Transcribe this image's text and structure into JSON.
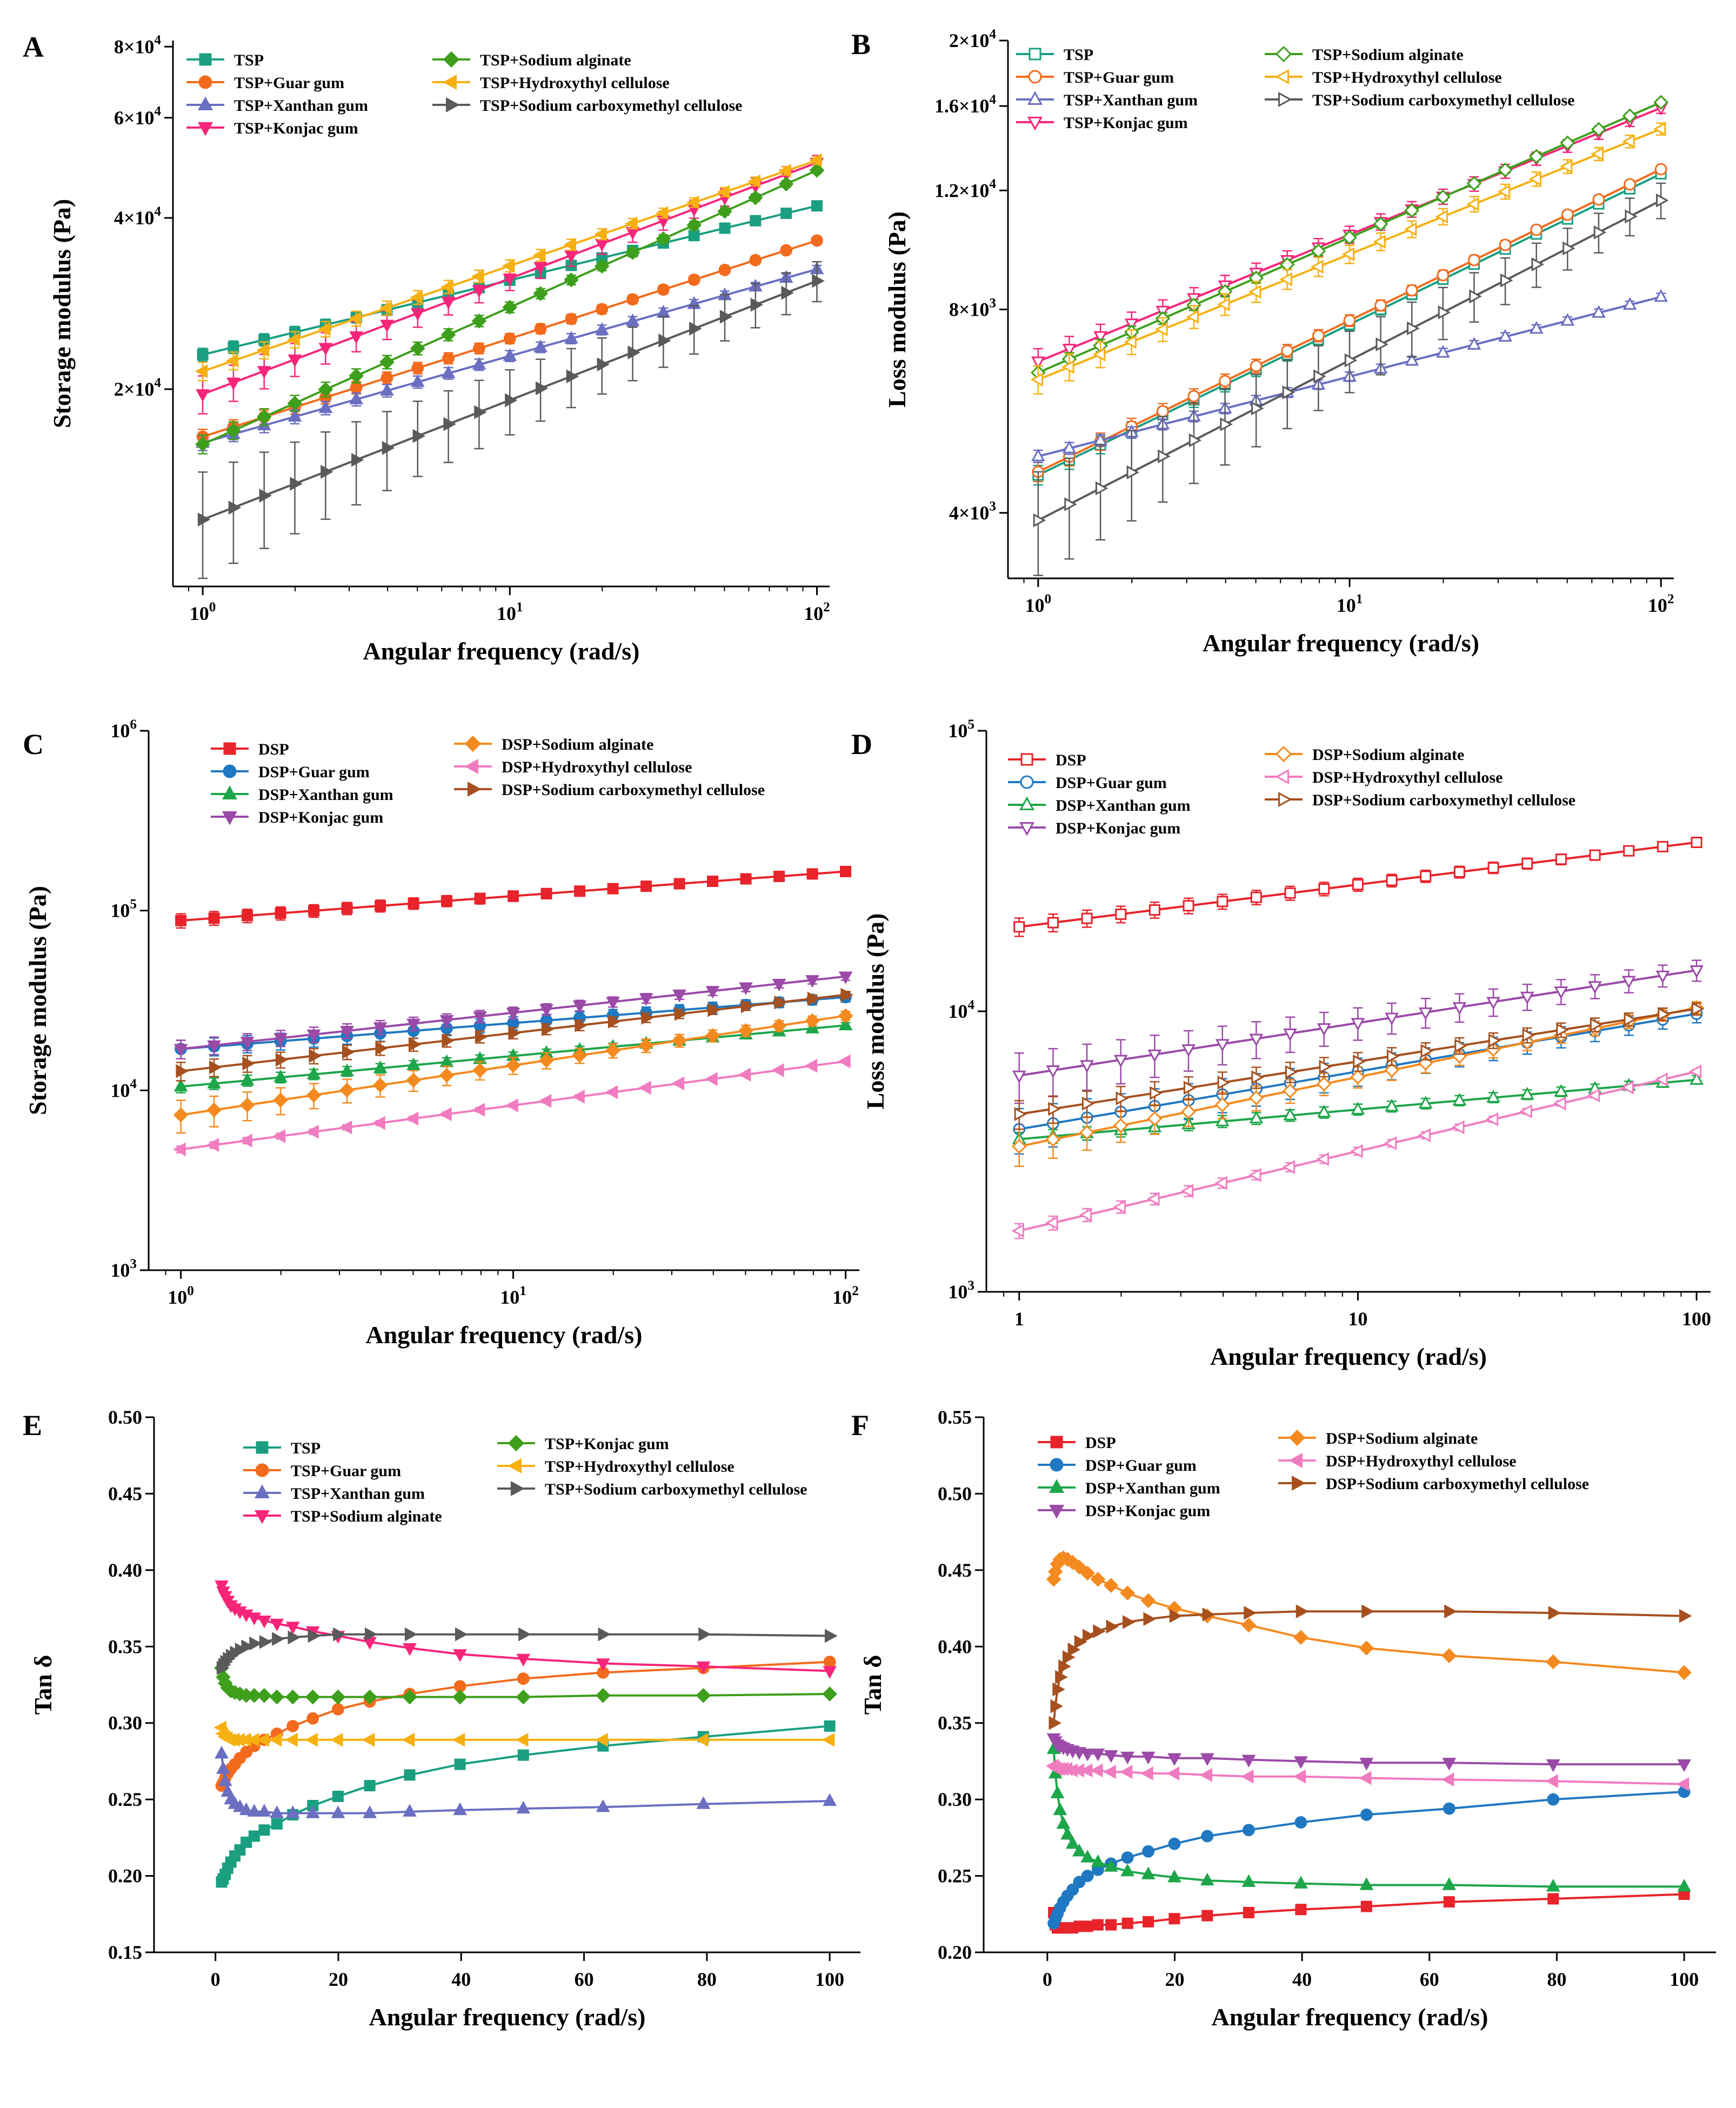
{
  "chart_data": [
    {
      "panel": "A",
      "type": "line",
      "xscale": "log",
      "yscale": "log",
      "xlabel": "Angular frequency (rad/s)",
      "ylabel": "Storage modulus (Pa)",
      "xlim": [
        0.8,
        110
      ],
      "ylim": [
        9000,
        82000
      ],
      "xticks": [
        {
          "v": 1,
          "b": "10",
          "e": "0"
        },
        {
          "v": 10,
          "b": "10",
          "e": "1"
        },
        {
          "v": 100,
          "b": "10",
          "e": "2"
        }
      ],
      "yticks": [
        {
          "v": 20000,
          "b": "2×10",
          "e": "4"
        },
        {
          "v": 40000,
          "b": "4×10",
          "e": "4"
        },
        {
          "v": 60000,
          "b": "6×10",
          "e": "4"
        },
        {
          "v": 80000,
          "b": "8×10",
          "e": "4"
        }
      ],
      "marker_fill": "solid",
      "series": [
        {
          "name": "TSP",
          "color": "#1a9f80",
          "marker": "square",
          "y0": 23000,
          "y1": 42000,
          "err": 600
        },
        {
          "name": "TSP+Guar gum",
          "color": "#f26b1d",
          "marker": "circle",
          "y0": 16500,
          "y1": 36500,
          "err": 500
        },
        {
          "name": "TSP+Xanthan gum",
          "color": "#6a6fc2",
          "marker": "tri-up",
          "y0": 16100,
          "y1": 32500,
          "err": 500
        },
        {
          "name": "TSP+Konjac gum",
          "color": "#f7257a",
          "marker": "tri-down",
          "y0": 19600,
          "y1": 50000,
          "err": 1500
        },
        {
          "name": "TSP+Sodium alginate",
          "color": "#3d9f1b",
          "marker": "diamond",
          "y0": 16000,
          "y1": 48500,
          "err": 600
        },
        {
          "name": "TSP+Hydroxythyl cellulose",
          "color": "#f6b012",
          "marker": "tri-left",
          "y0": 21500,
          "y1": 50500,
          "err": 800
        },
        {
          "name": "TSP+Sodium carboxymethyl cellulose",
          "color": "#5a5a5a",
          "marker": "tri-right",
          "y0": 11800,
          "y1": 31000,
          "err": 2500
        }
      ]
    },
    {
      "panel": "B",
      "type": "line",
      "xscale": "log",
      "yscale": "log",
      "xlabel": "Angular frequency (rad/s)",
      "ylabel": "Loss modulus (Pa)",
      "xlim": [
        0.8,
        110
      ],
      "ylim": [
        3200,
        20000
      ],
      "xticks": [
        {
          "v": 1,
          "b": "10",
          "e": "0"
        },
        {
          "v": 10,
          "b": "10",
          "e": "1"
        },
        {
          "v": 100,
          "b": "10",
          "e": "2"
        }
      ],
      "yticks": [
        {
          "v": 4000,
          "b": "4×10",
          "e": "3"
        },
        {
          "v": 8000,
          "b": "8×10",
          "e": "3"
        },
        {
          "v": 12000,
          "b": "1.2×10",
          "e": "4"
        },
        {
          "v": 16000,
          "b": "1.6×10",
          "e": "4"
        },
        {
          "v": 20000,
          "b": "2×10",
          "e": "4"
        }
      ],
      "marker_fill": "open",
      "series": [
        {
          "name": "TSP",
          "color": "#1a9f80",
          "marker": "square",
          "y0": 4550,
          "y1": 12700,
          "err": 150
        },
        {
          "name": "TSP+Guar gum",
          "color": "#f26b1d",
          "marker": "circle",
          "y0": 4600,
          "y1": 12900,
          "err": 150
        },
        {
          "name": "TSP+Xanthan gum",
          "color": "#6a6fc2",
          "marker": "tri-up",
          "y0": 4850,
          "y1": 8350,
          "err": 100
        },
        {
          "name": "TSP+Konjac gum",
          "color": "#f7257a",
          "marker": "tri-down",
          "y0": 6700,
          "y1": 15900,
          "err": 300
        },
        {
          "name": "TSP+Sodium alginate",
          "color": "#3d9f1b",
          "marker": "diamond",
          "y0": 6450,
          "y1": 16200,
          "err": 150
        },
        {
          "name": "TSP+Hydroxythyl cellulose",
          "color": "#f6b012",
          "marker": "tri-left",
          "y0": 6300,
          "y1": 14800,
          "err": 300
        },
        {
          "name": "TSP+Sodium carboxymethyl cellulose",
          "color": "#5a5a5a",
          "marker": "tri-right",
          "y0": 3900,
          "y1": 11600,
          "err": 700
        }
      ]
    },
    {
      "panel": "C",
      "type": "line",
      "xscale": "log",
      "yscale": "log",
      "xlabel": "Angular frequency (rad/s)",
      "ylabel": "Storage modulus (Pa)",
      "xlim": [
        0.8,
        110
      ],
      "ylim": [
        1000,
        1000000
      ],
      "xticks": [
        {
          "v": 1,
          "b": "10",
          "e": "0"
        },
        {
          "v": 10,
          "b": "10",
          "e": "1"
        },
        {
          "v": 100,
          "b": "10",
          "e": "2"
        }
      ],
      "yticks": [
        {
          "v": 1000,
          "b": "10",
          "e": "3"
        },
        {
          "v": 10000,
          "b": "10",
          "e": "4"
        },
        {
          "v": 100000,
          "b": "10",
          "e": "5"
        },
        {
          "v": 1000000,
          "b": "10",
          "e": "6"
        }
      ],
      "marker_fill": "solid",
      "series": [
        {
          "name": "DSP",
          "color": "#e8232a",
          "marker": "square",
          "y0": 88000,
          "y1": 165000,
          "err": 8000
        },
        {
          "name": "DSP+Guar gum",
          "color": "#1f78c1",
          "marker": "circle",
          "y0": 17000,
          "y1": 33000,
          "err": 2000
        },
        {
          "name": "DSP+Xanthan gum",
          "color": "#1ea64a",
          "marker": "tri-up",
          "y0": 10500,
          "y1": 23000,
          "err": 800
        },
        {
          "name": "DSP+Konjac gum",
          "color": "#9b4aa8",
          "marker": "tri-down",
          "y0": 17000,
          "y1": 43000,
          "err": 2000
        },
        {
          "name": "DSP+Sodium alginate",
          "color": "#f48a1f",
          "marker": "diamond",
          "y0": 7300,
          "y1": 26000,
          "err": 1500
        },
        {
          "name": "DSP+Hydroxythyl cellulose",
          "color": "#f07cc0",
          "marker": "tri-left",
          "y0": 4700,
          "y1": 14500,
          "err": 200
        },
        {
          "name": "DSP+Sodium carboxymethyl cellulose",
          "color": "#a5501e",
          "marker": "tri-right",
          "y0": 12800,
          "y1": 34000,
          "err": 1500
        }
      ]
    },
    {
      "panel": "D",
      "type": "line",
      "xscale": "log",
      "yscale": "log",
      "xlabel": "Angular frequency (rad/s)",
      "ylabel": "Loss modulus (Pa)",
      "xlim": [
        0.8,
        110
      ],
      "ylim": [
        1000,
        100000
      ],
      "xticks": [
        {
          "v": 1,
          "b": "1",
          "e": ""
        },
        {
          "v": 10,
          "b": "10",
          "e": ""
        },
        {
          "v": 100,
          "b": "100",
          "e": ""
        }
      ],
      "yticks": [
        {
          "v": 1000,
          "b": "10",
          "e": "3"
        },
        {
          "v": 10000,
          "b": "10",
          "e": "4"
        },
        {
          "v": 100000,
          "b": "10",
          "e": "5"
        }
      ],
      "marker_fill": "open",
      "series": [
        {
          "name": "DSP",
          "color": "#e8232a",
          "marker": "square",
          "y0": 20000,
          "y1": 40000,
          "err": 1500
        },
        {
          "name": "DSP+Guar gum",
          "color": "#1f78c1",
          "marker": "circle",
          "y0": 3800,
          "y1": 9800,
          "err": 700
        },
        {
          "name": "DSP+Xanthan gum",
          "color": "#1ea64a",
          "marker": "tri-up",
          "y0": 3500,
          "y1": 5700,
          "err": 200
        },
        {
          "name": "DSP+Konjac gum",
          "color": "#9b4aa8",
          "marker": "tri-down",
          "y0": 5900,
          "y1": 14000,
          "err": 1200
        },
        {
          "name": "DSP+Sodium alginate",
          "color": "#f48a1f",
          "marker": "diamond",
          "y0": 3300,
          "y1": 10300,
          "err": 500
        },
        {
          "name": "DSP+Hydroxythyl cellulose",
          "color": "#f07cc0",
          "marker": "tri-left",
          "y0": 1650,
          "y1": 6100,
          "err": 100
        },
        {
          "name": "DSP+Sodium carboxymethyl cellulose",
          "color": "#a5501e",
          "marker": "tri-right",
          "y0": 4300,
          "y1": 10200,
          "err": 500
        }
      ]
    },
    {
      "panel": "E",
      "type": "line",
      "xscale": "linear",
      "yscale": "linear",
      "xlabel": "Angular frequency (rad/s)",
      "ylabel": "Tan δ",
      "xlim": [
        -10,
        105
      ],
      "ylim": [
        0.15,
        0.5
      ],
      "xticks": [
        {
          "v": 0,
          "b": "0",
          "e": ""
        },
        {
          "v": 20,
          "b": "20",
          "e": ""
        },
        {
          "v": 40,
          "b": "40",
          "e": ""
        },
        {
          "v": 60,
          "b": "60",
          "e": ""
        },
        {
          "v": 80,
          "b": "80",
          "e": ""
        },
        {
          "v": 100,
          "b": "100",
          "e": ""
        }
      ],
      "yticks": [
        {
          "v": 0.15,
          "b": "0.15",
          "e": ""
        },
        {
          "v": 0.2,
          "b": "0.20",
          "e": ""
        },
        {
          "v": 0.25,
          "b": "0.25",
          "e": ""
        },
        {
          "v": 0.3,
          "b": "0.30",
          "e": ""
        },
        {
          "v": 0.35,
          "b": "0.35",
          "e": ""
        },
        {
          "v": 0.4,
          "b": "0.40",
          "e": ""
        },
        {
          "v": 0.45,
          "b": "0.45",
          "e": ""
        },
        {
          "v": 0.5,
          "b": "0.50",
          "e": ""
        }
      ],
      "marker_fill": "solid",
      "series": [
        {
          "name": "TSP",
          "color": "#1a9f80",
          "marker": "square",
          "y": [
            0.196,
            0.198,
            0.201,
            0.205,
            0.209,
            0.213,
            0.217,
            0.222,
            0.226,
            0.23,
            0.234,
            0.24,
            0.246,
            0.252,
            0.259,
            0.266,
            0.273,
            0.279,
            0.285,
            0.291,
            0.298
          ]
        },
        {
          "name": "TSP+Guar gum",
          "color": "#f26b1d",
          "marker": "circle",
          "y": [
            0.259,
            0.261,
            0.264,
            0.267,
            0.27,
            0.273,
            0.277,
            0.281,
            0.285,
            0.289,
            0.293,
            0.298,
            0.303,
            0.309,
            0.314,
            0.319,
            0.324,
            0.329,
            0.333,
            0.336,
            0.34
          ]
        },
        {
          "name": "TSP+Xanthan gum",
          "color": "#6a6fc2",
          "marker": "tri-up",
          "y": [
            0.28,
            0.27,
            0.262,
            0.255,
            0.25,
            0.247,
            0.245,
            0.243,
            0.242,
            0.242,
            0.241,
            0.241,
            0.241,
            0.241,
            0.241,
            0.242,
            0.243,
            0.244,
            0.245,
            0.247,
            0.249
          ]
        },
        {
          "name": "TSP+Sodium alginate",
          "color": "#f7257a",
          "marker": "tri-down",
          "y": [
            0.39,
            0.386,
            0.383,
            0.38,
            0.377,
            0.375,
            0.373,
            0.371,
            0.369,
            0.367,
            0.365,
            0.363,
            0.36,
            0.357,
            0.353,
            0.349,
            0.345,
            0.342,
            0.339,
            0.337,
            0.334
          ]
        },
        {
          "name": "TSP+Konjac gum",
          "color": "#3d9f1b",
          "marker": "diamond",
          "y": [
            0.336,
            0.33,
            0.326,
            0.323,
            0.321,
            0.32,
            0.319,
            0.318,
            0.318,
            0.318,
            0.317,
            0.317,
            0.317,
            0.317,
            0.317,
            0.317,
            0.317,
            0.317,
            0.318,
            0.318,
            0.319
          ]
        },
        {
          "name": "TSP+Hydroxythyl cellulose",
          "color": "#f6b012",
          "marker": "tri-left",
          "y": [
            0.297,
            0.293,
            0.291,
            0.29,
            0.289,
            0.289,
            0.289,
            0.289,
            0.289,
            0.289,
            0.289,
            0.289,
            0.289,
            0.289,
            0.289,
            0.289,
            0.289,
            0.289,
            0.289,
            0.289,
            0.289
          ]
        },
        {
          "name": "TSP+Sodium carboxymethyl cellulose",
          "color": "#5a5a5a",
          "marker": "tri-right",
          "y": [
            0.336,
            0.338,
            0.34,
            0.342,
            0.344,
            0.346,
            0.348,
            0.35,
            0.352,
            0.353,
            0.355,
            0.356,
            0.357,
            0.358,
            0.358,
            0.358,
            0.358,
            0.358,
            0.358,
            0.358,
            0.357
          ]
        }
      ]
    },
    {
      "panel": "F",
      "type": "line",
      "xscale": "linear",
      "yscale": "linear",
      "xlabel": "Angular frequency (rad/s)",
      "ylabel": "Tan δ",
      "xlim": [
        -10,
        105
      ],
      "ylim": [
        0.2,
        0.55
      ],
      "xticks": [
        {
          "v": 0,
          "b": "0",
          "e": ""
        },
        {
          "v": 20,
          "b": "20",
          "e": ""
        },
        {
          "v": 40,
          "b": "40",
          "e": ""
        },
        {
          "v": 60,
          "b": "60",
          "e": ""
        },
        {
          "v": 80,
          "b": "80",
          "e": ""
        },
        {
          "v": 100,
          "b": "100",
          "e": ""
        }
      ],
      "yticks": [
        {
          "v": 0.2,
          "b": "0.20",
          "e": ""
        },
        {
          "v": 0.25,
          "b": "0.25",
          "e": ""
        },
        {
          "v": 0.3,
          "b": "0.30",
          "e": ""
        },
        {
          "v": 0.35,
          "b": "0.35",
          "e": ""
        },
        {
          "v": 0.4,
          "b": "0.40",
          "e": ""
        },
        {
          "v": 0.45,
          "b": "0.45",
          "e": ""
        },
        {
          "v": 0.5,
          "b": "0.50",
          "e": ""
        },
        {
          "v": 0.55,
          "b": "0.55",
          "e": ""
        }
      ],
      "marker_fill": "solid",
      "series": [
        {
          "name": "DSP",
          "color": "#e8232a",
          "marker": "square",
          "y": [
            0.226,
            0.218,
            0.216,
            0.216,
            0.216,
            0.216,
            0.216,
            0.217,
            0.217,
            0.218,
            0.218,
            0.219,
            0.22,
            0.222,
            0.224,
            0.226,
            0.228,
            0.23,
            0.233,
            0.235,
            0.238
          ]
        },
        {
          "name": "DSP+Guar gum",
          "color": "#1f78c1",
          "marker": "circle",
          "y": [
            0.219,
            0.222,
            0.225,
            0.229,
            0.233,
            0.237,
            0.241,
            0.246,
            0.25,
            0.254,
            0.258,
            0.262,
            0.266,
            0.271,
            0.276,
            0.28,
            0.285,
            0.29,
            0.294,
            0.3,
            0.305
          ]
        },
        {
          "name": "DSP+Xanthan gum",
          "color": "#1ea64a",
          "marker": "tri-up",
          "y": [
            0.333,
            0.317,
            0.304,
            0.293,
            0.284,
            0.277,
            0.271,
            0.266,
            0.262,
            0.259,
            0.256,
            0.253,
            0.251,
            0.249,
            0.247,
            0.246,
            0.245,
            0.244,
            0.244,
            0.243,
            0.243
          ]
        },
        {
          "name": "DSP+Konjac gum",
          "color": "#9b4aa8",
          "marker": "tri-down",
          "y": [
            0.34,
            0.338,
            0.336,
            0.335,
            0.334,
            0.333,
            0.332,
            0.331,
            0.33,
            0.33,
            0.329,
            0.328,
            0.328,
            0.327,
            0.327,
            0.326,
            0.325,
            0.324,
            0.324,
            0.323,
            0.323
          ]
        },
        {
          "name": "DSP+Sodium alginate",
          "color": "#f48a1f",
          "marker": "diamond",
          "y": [
            0.444,
            0.449,
            0.454,
            0.457,
            0.458,
            0.457,
            0.455,
            0.452,
            0.448,
            0.444,
            0.44,
            0.435,
            0.43,
            0.425,
            0.42,
            0.414,
            0.406,
            0.399,
            0.394,
            0.39,
            0.383
          ]
        },
        {
          "name": "DSP+Hydroxythyl cellulose",
          "color": "#f07cc0",
          "marker": "tri-left",
          "y": [
            0.322,
            0.321,
            0.32,
            0.32,
            0.32,
            0.32,
            0.319,
            0.319,
            0.319,
            0.319,
            0.318,
            0.318,
            0.317,
            0.317,
            0.316,
            0.315,
            0.315,
            0.314,
            0.313,
            0.312,
            0.31
          ]
        },
        {
          "name": "DSP+Sodium carboxymethyl cellulose",
          "color": "#a5501e",
          "marker": "tri-right",
          "y": [
            0.35,
            0.361,
            0.372,
            0.38,
            0.387,
            0.393,
            0.398,
            0.403,
            0.407,
            0.41,
            0.413,
            0.416,
            0.418,
            0.42,
            0.421,
            0.422,
            0.423,
            0.423,
            0.423,
            0.422,
            0.42
          ]
        }
      ]
    }
  ]
}
